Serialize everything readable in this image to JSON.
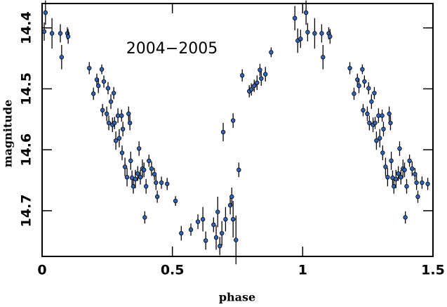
{
  "chart_data": {
    "type": "scatter",
    "annotation": "2004−2005",
    "xlabel": "phase",
    "ylabel": "magnitude",
    "xlim": [
      0,
      1.5
    ],
    "xticks": [
      0,
      0.5,
      1,
      1.5
    ],
    "ylim": [
      14.775,
      14.36
    ],
    "yticks": [
      14.4,
      14.5,
      14.6,
      14.7
    ],
    "color": "#2e64b8",
    "x": [
      0.008,
      0.013,
      0.038,
      0.07,
      0.075,
      0.097,
      0.1,
      0.181,
      0.197,
      0.21,
      0.216,
      0.229,
      0.237,
      0.232,
      0.248,
      0.253,
      0.256,
      0.264,
      0.27,
      0.275,
      0.278,
      0.283,
      0.291,
      0.296,
      0.305,
      0.307,
      0.31,
      0.318,
      0.326,
      0.332,
      0.337,
      0.34,
      0.345,
      0.35,
      0.358,
      0.367,
      0.372,
      0.377,
      0.385,
      0.391,
      0.394,
      0.399,
      0.41,
      0.42,
      0.431,
      0.437,
      0.442,
      0.458,
      0.48,
      0.512,
      0.534,
      0.571,
      0.598,
      0.617,
      0.628,
      0.658,
      0.668,
      0.674,
      0.682,
      0.69,
      0.704,
      0.722,
      0.728,
      0.733,
      0.744,
      0.755,
      0.695,
      0.733,
      0.768,
      0.795,
      0.803,
      0.814,
      0.825,
      0.836,
      0.841,
      0.857,
      0.879,
      0.97,
      0.981,
      0.992,
      1.013,
      1.019,
      1.046,
      1.073,
      1.078,
      1.1,
      1.105,
      1.181,
      1.197,
      1.21,
      1.216,
      1.229,
      1.237,
      1.232,
      1.248,
      1.253,
      1.256,
      1.264,
      1.27,
      1.275,
      1.278,
      1.283,
      1.291,
      1.296,
      1.305,
      1.307,
      1.31,
      1.318,
      1.326,
      1.332,
      1.337,
      1.34,
      1.345,
      1.35,
      1.358,
      1.367,
      1.372,
      1.377,
      1.385,
      1.391,
      1.394,
      1.399,
      1.41,
      1.42,
      1.431,
      1.437,
      1.442,
      1.458,
      1.48
    ],
    "values": [
      14.406,
      14.375,
      14.409,
      14.409,
      14.448,
      14.409,
      14.414,
      14.466,
      14.508,
      14.485,
      14.495,
      14.468,
      14.488,
      14.535,
      14.541,
      14.499,
      14.556,
      14.521,
      14.559,
      14.507,
      14.556,
      14.585,
      14.544,
      14.581,
      14.544,
      14.605,
      14.566,
      14.628,
      14.645,
      14.541,
      14.556,
      14.618,
      14.646,
      14.66,
      14.648,
      14.639,
      14.598,
      14.645,
      14.631,
      14.633,
      14.711,
      14.66,
      14.618,
      14.631,
      14.64,
      14.654,
      14.677,
      14.654,
      14.656,
      14.684,
      14.737,
      14.731,
      14.718,
      14.714,
      14.749,
      14.723,
      14.744,
      14.702,
      14.758,
      14.737,
      14.714,
      14.691,
      14.677,
      14.714,
      14.748,
      14.633,
      14.571,
      14.552,
      14.478,
      14.504,
      14.501,
      14.495,
      14.49,
      14.469,
      14.483,
      14.476,
      14.44,
      14.384,
      14.421,
      14.418,
      14.375,
      14.407,
      14.409,
      14.409,
      14.448,
      14.409,
      14.414,
      14.466,
      14.508,
      14.485,
      14.495,
      14.468,
      14.488,
      14.535,
      14.541,
      14.499,
      14.556,
      14.521,
      14.559,
      14.507,
      14.556,
      14.585,
      14.544,
      14.581,
      14.544,
      14.605,
      14.566,
      14.628,
      14.645,
      14.541,
      14.556,
      14.618,
      14.646,
      14.66,
      14.648,
      14.639,
      14.598,
      14.645,
      14.631,
      14.633,
      14.711,
      14.66,
      14.618,
      14.631,
      14.64,
      14.654,
      14.677,
      14.654,
      14.656
    ],
    "errors": [
      0.015,
      0.02,
      0.025,
      0.015,
      0.02,
      0.01,
      0.012,
      0.01,
      0.01,
      0.01,
      0.012,
      0.008,
      0.01,
      0.01,
      0.012,
      0.01,
      0.012,
      0.012,
      0.012,
      0.01,
      0.01,
      0.015,
      0.012,
      0.015,
      0.01,
      0.012,
      0.012,
      0.015,
      0.015,
      0.012,
      0.012,
      0.015,
      0.012,
      0.012,
      0.015,
      0.012,
      0.012,
      0.012,
      0.015,
      0.012,
      0.01,
      0.012,
      0.01,
      0.012,
      0.01,
      0.012,
      0.01,
      0.01,
      0.01,
      0.008,
      0.012,
      0.01,
      0.012,
      0.02,
      0.015,
      0.012,
      0.02,
      0.025,
      0.015,
      0.02,
      0.02,
      0.015,
      0.015,
      0.03,
      0.04,
      0.012,
      0.015,
      0.012,
      0.01,
      0.01,
      0.01,
      0.01,
      0.012,
      0.01,
      0.012,
      0.012,
      0.008,
      0.02,
      0.02,
      0.015,
      0.02,
      0.015,
      0.025,
      0.015,
      0.02,
      0.01,
      0.012,
      0.01,
      0.01,
      0.01,
      0.012,
      0.008,
      0.01,
      0.01,
      0.012,
      0.01,
      0.012,
      0.012,
      0.012,
      0.01,
      0.01,
      0.015,
      0.012,
      0.015,
      0.01,
      0.012,
      0.012,
      0.015,
      0.015,
      0.012,
      0.012,
      0.015,
      0.012,
      0.012,
      0.015,
      0.012,
      0.012,
      0.012,
      0.015,
      0.012,
      0.01,
      0.012,
      0.01,
      0.012,
      0.01,
      0.012,
      0.01,
      0.01,
      0.01
    ]
  }
}
